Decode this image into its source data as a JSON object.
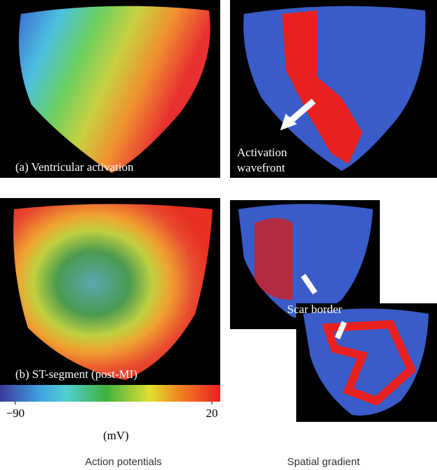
{
  "panels": {
    "a_label": "(a) Ventricular activation",
    "wavefront_label": "Activation wavefront",
    "b_label": "(b) ST-segment (post-MI)",
    "scar_label": "Scar border"
  },
  "colorbar": {
    "ticks": [
      {
        "value": -90,
        "label": "−90"
      },
      20
    ],
    "unit": "(mV)"
  },
  "captions": {
    "left": "Action potentials",
    "right": "Spatial gradient"
  }
}
